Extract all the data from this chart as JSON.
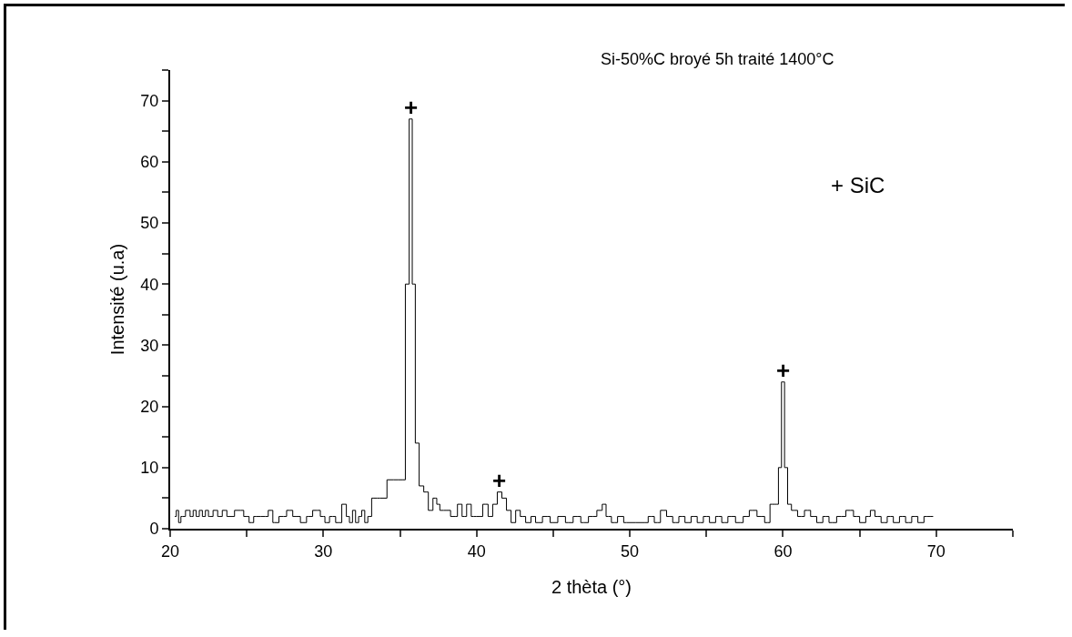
{
  "chart_data": {
    "type": "step",
    "title": "Si-50%C broyé 5h traité 1400°C",
    "xlabel": "2 thèta (°)",
    "ylabel": "Intensité (u.a)",
    "x": [
      20.3,
      20.5,
      20.6,
      20.8,
      21.2,
      21.4,
      21.6,
      21.8,
      22.0,
      22.2,
      22.4,
      22.6,
      23.0,
      23.2,
      23.6,
      23.8,
      24.6,
      25.0,
      25.3,
      25.6,
      26.2,
      26.6,
      26.8,
      27.4,
      27.8,
      28.2,
      28.8,
      29.0,
      29.6,
      30.0,
      30.2,
      30.6,
      31.0,
      31.4,
      31.6,
      31.8,
      32.0,
      32.2,
      32.4,
      32.6,
      32.8,
      33.0,
      33.3,
      33.7,
      34.6,
      35.2,
      35.5,
      35.7,
      35.9,
      36.1,
      36.4,
      36.7,
      37.0,
      37.3,
      37.5,
      37.7,
      38.0,
      38.6,
      38.9,
      39.2,
      39.5,
      39.8,
      40.2,
      40.6,
      40.9,
      41.2,
      41.5,
      41.8,
      42.1,
      42.4,
      42.7,
      43.0,
      43.4,
      43.7,
      44.0,
      44.6,
      45.0,
      45.6,
      46.0,
      46.6,
      47.0,
      47.6,
      48.1,
      48.3,
      48.6,
      49.0,
      49.4,
      49.8,
      51.0,
      51.4,
      51.8,
      52.2,
      52.6,
      53.0,
      53.4,
      53.8,
      54.2,
      54.6,
      55.0,
      55.4,
      55.8,
      56.2,
      56.6,
      57.2,
      57.6,
      58.0,
      58.6,
      59.0,
      59.3,
      59.6,
      59.8,
      60.0,
      60.2,
      60.4,
      60.7,
      61.2,
      61.6,
      62.0,
      62.4,
      62.8,
      63.2,
      63.8,
      64.4,
      64.8,
      65.2,
      65.6,
      65.8,
      66.2,
      66.6,
      67.0,
      67.4,
      67.8,
      68.2,
      68.6,
      69.0,
      69.4,
      69.8
    ],
    "values": [
      2,
      3,
      1,
      2,
      3,
      2,
      3,
      2,
      3,
      2,
      3,
      2,
      3,
      2,
      3,
      2,
      3,
      2,
      1,
      2,
      2,
      3,
      1,
      2,
      3,
      2,
      1,
      2,
      3,
      2,
      1,
      2,
      1,
      4,
      2,
      1,
      3,
      1,
      2,
      3,
      1,
      2,
      5,
      5,
      8,
      8,
      40,
      67,
      40,
      14,
      7,
      6,
      3,
      5,
      4,
      3,
      3,
      2,
      4,
      2,
      4,
      2,
      2,
      4,
      2,
      4,
      6,
      5,
      3,
      1,
      3,
      2,
      1,
      2,
      1,
      2,
      1,
      2,
      1,
      2,
      1,
      2,
      3,
      4,
      2,
      1,
      2,
      1,
      1,
      2,
      1,
      3,
      2,
      1,
      2,
      1,
      2,
      1,
      2,
      1,
      2,
      1,
      2,
      1,
      2,
      3,
      2,
      1,
      4,
      4,
      10,
      24,
      10,
      4,
      3,
      2,
      3,
      2,
      1,
      2,
      1,
      2,
      3,
      2,
      1,
      2,
      3,
      2,
      1,
      2,
      1,
      2,
      1,
      2,
      1,
      2,
      2
    ],
    "color": "#000000",
    "xlim": [
      20,
      75
    ],
    "ylim": [
      0,
      75
    ],
    "xticks": [
      20,
      {
        "value": 25,
        "label": null
      },
      30,
      {
        "value": 35,
        "label": null
      },
      40,
      {
        "value": 45,
        "label": null
      },
      50,
      {
        "value": 55,
        "label": null
      },
      60,
      {
        "value": 65,
        "label": null
      },
      70,
      {
        "value": 75,
        "label": null
      }
    ],
    "yticks": [
      0,
      {
        "value": 5,
        "label": null
      },
      10,
      {
        "value": 15,
        "label": null
      },
      20,
      {
        "value": 25,
        "label": null
      },
      30,
      {
        "value": 35,
        "label": null
      },
      40,
      {
        "value": 45,
        "label": null
      },
      50,
      {
        "value": 55,
        "label": null
      },
      60,
      {
        "value": 65,
        "label": null
      },
      70,
      {
        "value": 75,
        "label": null
      }
    ],
    "grid": false,
    "annotations": [
      {
        "text": "+",
        "x": 35.7,
        "y": 67
      },
      {
        "text": "+",
        "x": 41.5,
        "y": 6
      },
      {
        "text": "+",
        "x": 60.0,
        "y": 24
      },
      "+ SiC"
    ]
  }
}
